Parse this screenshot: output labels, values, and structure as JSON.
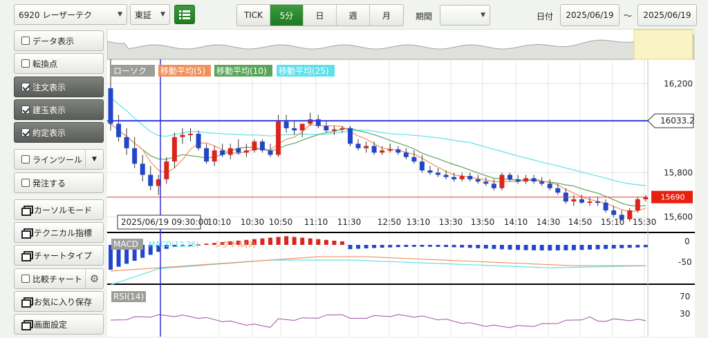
{
  "toolbar": {
    "symbol": "6920 レーザーテク",
    "market": "東証",
    "periods": [
      "TICK",
      "5分",
      "日",
      "週",
      "月"
    ],
    "active_period": "5分",
    "range_label": "期間",
    "range_value": "",
    "date_label": "日付",
    "date_from": "2025/06/19",
    "date_sep": "〜",
    "date_to": "2025/06/19"
  },
  "sidebar": {
    "data_display": "データ表示",
    "turn_point": "転換点",
    "order_display": "注文表示",
    "position_display": "建玉表示",
    "execution_display": "約定表示",
    "line_tool": "ラインツール",
    "place_order": "発注する",
    "cursor_mode": "カーソルモード",
    "technical": "テクニカル指標",
    "chart_type": "チャートタイプ",
    "compare_chart": "比較チャート",
    "save_favorite": "お気に入り保存",
    "screen_settings": "画面設定"
  },
  "legend": {
    "candle": "ローソク",
    "ma5": "移動平均(5)",
    "ma10": "移動平均(10)",
    "ma25": "移動平均(25)"
  },
  "chart": {
    "price_labels": [
      "16,200",
      "15,800",
      "15,600"
    ],
    "hline_blue": "16033.2",
    "hline_red": "15690",
    "cursor_time": "2025/06/19 09:30:00",
    "time_labels": [
      "10:10",
      "10:30",
      "10:50",
      "11:10",
      "11:30",
      "12:50",
      "13:10",
      "13:30",
      "13:50",
      "14:10",
      "14:30",
      "14:50",
      "15:10",
      "15:30"
    ],
    "macd_label": "MACD",
    "macd_sub1": "MACD(12,26)",
    "macd_sub2": "シグナル(9)",
    "macd_scale": [
      "0",
      "-50"
    ],
    "rsi_label": "RSI(14)",
    "rsi_scale": [
      "70",
      "30"
    ],
    "colors": {
      "up": "#d9261c",
      "down": "#2346c9",
      "ma5": "#f0905a",
      "ma10": "#5aa55a",
      "ma25": "#5fe0ec",
      "rsi": "#a04aa8"
    }
  },
  "chart_data": {
    "type": "candlestick",
    "price_ticks": [
      16200,
      15800,
      15600
    ],
    "price_range": [
      15540,
      16310
    ],
    "x_tick_labels": [
      "10:10",
      "10:30",
      "10:50",
      "11:10",
      "11:30",
      "12:50",
      "13:10",
      "13:30",
      "13:50",
      "14:10",
      "14:30",
      "14:50",
      "15:10",
      "15:30"
    ],
    "reference_lines": [
      {
        "value": 16033.2,
        "color": "#2f3ce0"
      },
      {
        "value": 15690,
        "color": "#e23a3a"
      }
    ],
    "candles_ohlc": [
      [
        16180,
        16310,
        15990,
        16020
      ],
      [
        16020,
        16060,
        15940,
        15960
      ],
      [
        15960,
        16000,
        15880,
        15910
      ],
      [
        15910,
        15960,
        15820,
        15840
      ],
      [
        15840,
        15880,
        15760,
        15790
      ],
      [
        15790,
        15830,
        15720,
        15740
      ],
      [
        15740,
        15790,
        15700,
        15770
      ],
      [
        15770,
        15870,
        15750,
        15850
      ],
      [
        15850,
        15980,
        15820,
        15960
      ],
      [
        15960,
        16000,
        15930,
        15970
      ],
      [
        15970,
        16000,
        15940,
        15975
      ],
      [
        15975,
        15990,
        15900,
        15910
      ],
      [
        15910,
        15930,
        15840,
        15850
      ],
      [
        15850,
        15920,
        15830,
        15900
      ],
      [
        15900,
        15930,
        15870,
        15880
      ],
      [
        15880,
        15930,
        15860,
        15910
      ],
      [
        15910,
        15950,
        15880,
        15890
      ],
      [
        15890,
        15930,
        15870,
        15900
      ],
      [
        15900,
        15950,
        15890,
        15940
      ],
      [
        15940,
        15950,
        15890,
        15900
      ],
      [
        15900,
        15930,
        15870,
        15880
      ],
      [
        15880,
        16060,
        15870,
        16030
      ],
      [
        16030,
        16060,
        15980,
        16000
      ],
      [
        16000,
        16030,
        15970,
        15990
      ],
      [
        15990,
        16020,
        15960,
        16020
      ],
      [
        16020,
        16070,
        16010,
        16040
      ],
      [
        16040,
        16060,
        16000,
        16010
      ],
      [
        16010,
        16030,
        15980,
        15990
      ],
      [
        15990,
        16010,
        15970,
        15995
      ],
      [
        15995,
        16010,
        15980,
        16000
      ],
      [
        16000,
        16010,
        15920,
        15930
      ],
      [
        15930,
        15950,
        15900,
        15910
      ],
      [
        15910,
        15940,
        15890,
        15920
      ],
      [
        15920,
        15940,
        15880,
        15890
      ],
      [
        15890,
        15920,
        15880,
        15900
      ],
      [
        15900,
        15930,
        15890,
        15905
      ],
      [
        15905,
        15920,
        15880,
        15890
      ],
      [
        15890,
        15910,
        15860,
        15870
      ],
      [
        15870,
        15900,
        15840,
        15850
      ],
      [
        15850,
        15880,
        15800,
        15810
      ],
      [
        15810,
        15830,
        15790,
        15800
      ],
      [
        15800,
        15820,
        15780,
        15790
      ],
      [
        15790,
        15810,
        15770,
        15780
      ],
      [
        15780,
        15800,
        15760,
        15770
      ],
      [
        15770,
        15800,
        15760,
        15785
      ],
      [
        15785,
        15800,
        15760,
        15770
      ],
      [
        15770,
        15790,
        15750,
        15760
      ],
      [
        15760,
        15780,
        15740,
        15750
      ],
      [
        15750,
        15770,
        15720,
        15730
      ],
      [
        15730,
        15800,
        15720,
        15790
      ],
      [
        15790,
        15800,
        15760,
        15770
      ],
      [
        15770,
        15790,
        15750,
        15760
      ],
      [
        15760,
        15790,
        15750,
        15775
      ],
      [
        15775,
        15790,
        15750,
        15760
      ],
      [
        15760,
        15780,
        15740,
        15750
      ],
      [
        15750,
        15770,
        15720,
        15730
      ],
      [
        15730,
        15750,
        15700,
        15710
      ],
      [
        15710,
        15730,
        15660,
        15670
      ],
      [
        15670,
        15700,
        15650,
        15680
      ],
      [
        15680,
        15700,
        15660,
        15665
      ],
      [
        15665,
        15690,
        15650,
        15670
      ],
      [
        15670,
        15690,
        15650,
        15665
      ],
      [
        15665,
        15680,
        15620,
        15630
      ],
      [
        15630,
        15650,
        15600,
        15610
      ],
      [
        15610,
        15630,
        15580,
        15590
      ],
      [
        15590,
        15640,
        15580,
        15630
      ],
      [
        15630,
        15690,
        15620,
        15680
      ],
      [
        15680,
        15700,
        15670,
        15690
      ]
    ],
    "macd_axis": [
      0,
      -50
    ],
    "rsi_axis": [
      70,
      30
    ]
  }
}
